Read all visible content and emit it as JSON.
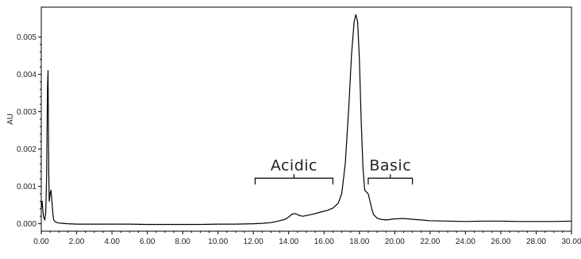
{
  "chart_data": {
    "type": "line",
    "title": "",
    "xlabel": "",
    "ylabel": "AU",
    "xlim": [
      0,
      30
    ],
    "ylim": [
      -0.0002,
      0.0058
    ],
    "grid": false,
    "line_color": "#000000",
    "x_ticks": [
      "0.00",
      "2.00",
      "4.00",
      "6.00",
      "8.00",
      "10.00",
      "12.00",
      "14.00",
      "16.00",
      "18.00",
      "20.00",
      "22.00",
      "24.00",
      "26.00",
      "28.00",
      "30.00"
    ],
    "y_ticks": [
      "0.000",
      "0.001",
      "0.002",
      "0.003",
      "0.004",
      "0.005"
    ],
    "annotations": [
      {
        "label": "Acidic",
        "x_start": 12.1,
        "x_end": 16.5,
        "y": 0.00122
      },
      {
        "label": "Basic",
        "x_start": 18.5,
        "x_end": 21.0,
        "y": 0.00122
      }
    ],
    "series": [
      {
        "x": [
          0.0,
          0.05,
          0.1,
          0.15,
          0.2,
          0.25,
          0.3,
          0.35,
          0.38,
          0.42,
          0.45,
          0.5,
          0.55,
          0.6,
          0.65,
          0.7,
          0.8,
          0.9,
          1.0,
          1.2,
          1.5,
          2.0,
          3.0,
          4.0,
          5.0,
          6.0,
          7.0,
          8.0,
          9.0,
          10.0,
          11.0,
          12.0,
          12.5,
          13.0,
          13.5,
          13.8,
          14.0,
          14.2,
          14.4,
          14.6,
          14.8,
          15.0,
          15.4,
          15.8,
          16.2,
          16.5,
          16.8,
          17.0,
          17.2,
          17.4,
          17.55,
          17.7,
          17.8,
          17.9,
          18.0,
          18.1,
          18.2,
          18.3,
          18.4,
          18.5,
          18.6,
          18.7,
          18.8,
          19.0,
          19.2,
          19.5,
          20.0,
          20.5,
          21.0,
          21.5,
          22.0,
          23.0,
          24.0,
          25.0,
          26.0,
          27.0,
          28.0,
          29.0,
          30.0
        ],
        "y": [
          0.0004,
          0.0006,
          0.0003,
          0.00015,
          0.0001,
          0.0003,
          0.0012,
          0.0036,
          0.0041,
          0.0014,
          0.0006,
          0.0008,
          0.0009,
          0.0006,
          0.0003,
          0.0001,
          5e-05,
          3e-05,
          2e-05,
          1e-05,
          0.0,
          -1e-05,
          -1e-05,
          -1e-05,
          -1e-05,
          -2e-05,
          -2e-05,
          -2e-05,
          -2e-05,
          -1e-05,
          -1e-05,
          0.0,
          1e-05,
          3e-05,
          8e-05,
          0.00012,
          0.00018,
          0.00026,
          0.00027,
          0.00022,
          0.0002,
          0.00022,
          0.00026,
          0.00031,
          0.00036,
          0.00042,
          0.00055,
          0.0008,
          0.0016,
          0.0031,
          0.0045,
          0.0054,
          0.0056,
          0.0054,
          0.0044,
          0.0028,
          0.0015,
          0.0009,
          0.00085,
          0.0008,
          0.0006,
          0.0004,
          0.00025,
          0.00015,
          0.00012,
          0.0001,
          0.00013,
          0.00014,
          0.00012,
          0.0001,
          8e-05,
          7e-05,
          6e-05,
          7e-05,
          7e-05,
          6e-05,
          6e-05,
          6e-05,
          7e-05
        ]
      }
    ]
  }
}
